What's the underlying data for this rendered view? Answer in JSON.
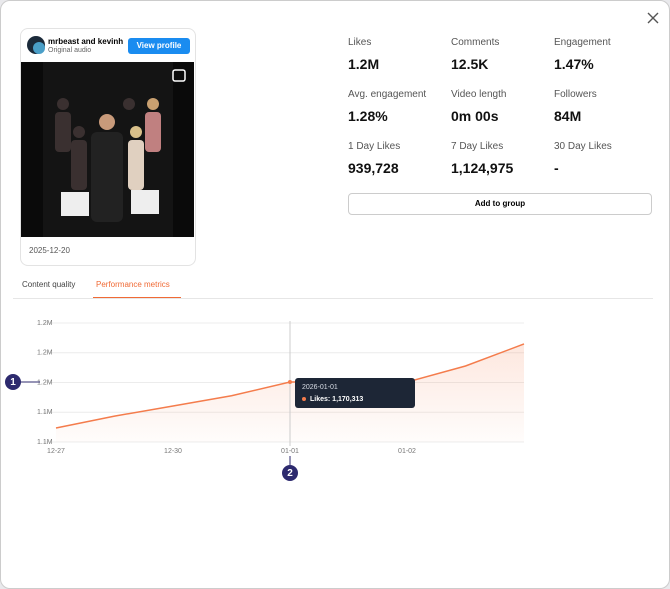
{
  "post": {
    "author": "mrbeast and kevinh",
    "audio": "Original audio",
    "button": "View profile",
    "date": "2025-12-20"
  },
  "metrics": [
    {
      "label": "Likes",
      "value": "1.2M"
    },
    {
      "label": "Comments",
      "value": "12.5K"
    },
    {
      "label": "Engagement",
      "value": "1.47%"
    },
    {
      "label": "Avg. engagement",
      "value": "1.28%"
    },
    {
      "label": "Video length",
      "value": "0m 00s"
    },
    {
      "label": "Followers",
      "value": "84M"
    },
    {
      "label": "1 Day Likes",
      "value": "939,728"
    },
    {
      "label": "7 Day Likes",
      "value": "1,124,975"
    },
    {
      "label": "30 Day Likes",
      "value": "-"
    }
  ],
  "add_button": "Add to group",
  "tabs": [
    "Content quality",
    "Performance metrics"
  ],
  "chart": {
    "type": "line",
    "categories": [
      "12-27",
      null,
      "12-30",
      null,
      "01-01",
      null,
      "01-02",
      null,
      null
    ],
    "values": [
      1139400,
      1147400,
      1154200,
      1161100,
      1170313,
      1170500,
      1170300,
      1181100,
      1195900
    ],
    "color": "#f47c4c",
    "ylim": [
      1130000,
      1210000
    ],
    "yticks": [
      {
        "value": 1130000,
        "label": "1.1M"
      },
      {
        "value": 1150000,
        "label": "1.1M"
      },
      {
        "value": 1170000,
        "label": "1.2M"
      },
      {
        "value": 1190000,
        "label": "1.2M"
      },
      {
        "value": 1210000,
        "label": "1.2M"
      }
    ],
    "grid": true,
    "tooltip": {
      "title": "2026-01-01",
      "text": "Likes: 1,170,313"
    }
  },
  "markers": [
    "1",
    "2"
  ]
}
